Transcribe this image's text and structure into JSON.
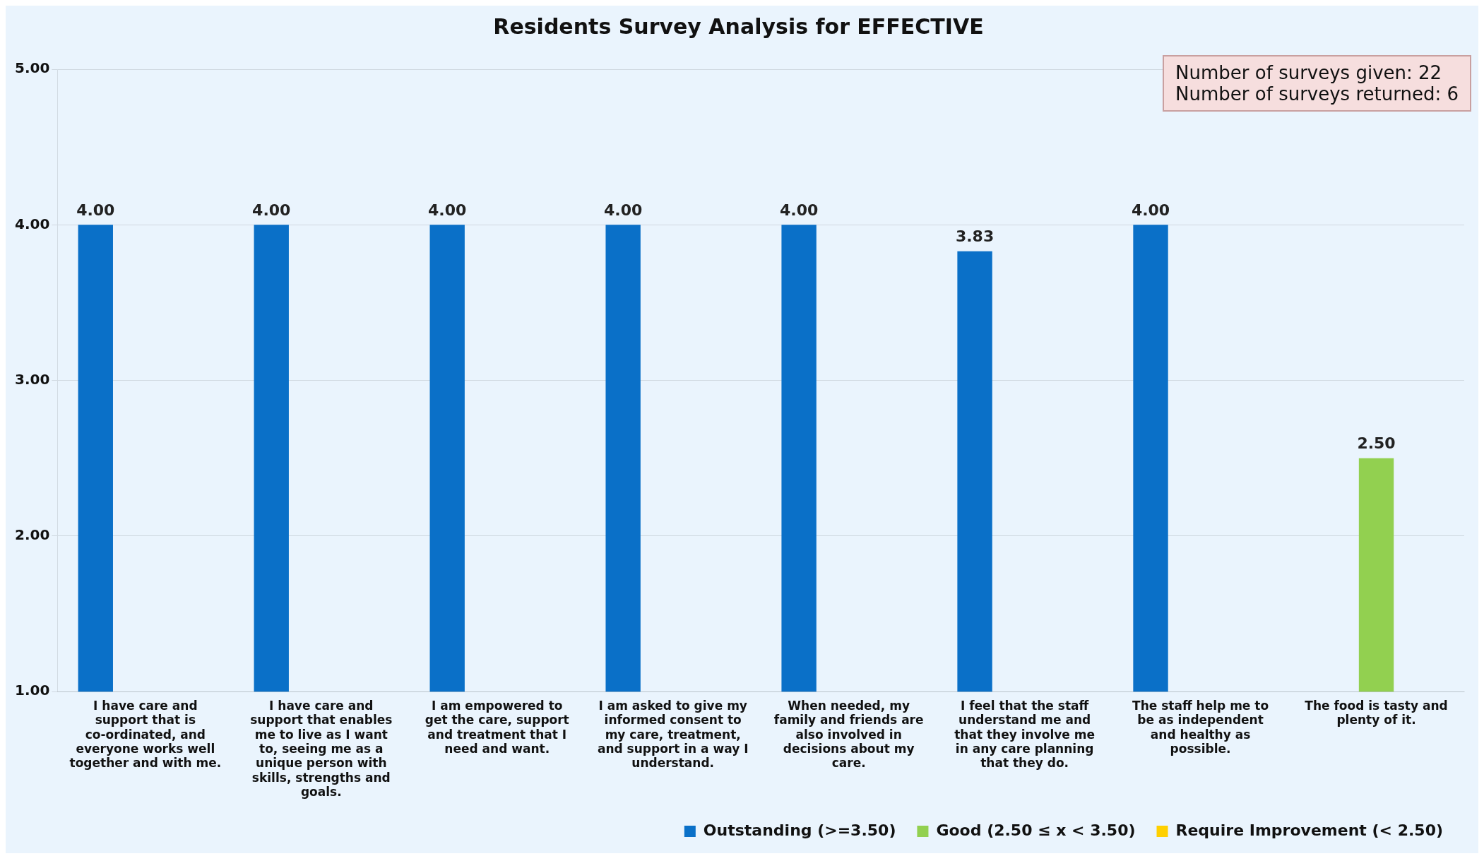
{
  "chart_data": {
    "type": "bar",
    "title": "Residents Survey Analysis for EFFECTIVE",
    "categories": [
      "I have care and support that is co-ordinated, and everyone works well together and with me.",
      "I have care and support that enables me to live as I want to, seeing me as a unique person with skills, strengths and goals.",
      "I am empowered to get the care, support and treatment that I need and want.",
      "I am asked to give my informed consent to my care, treatment, and support in a way I understand.",
      "When needed, my family and friends are also involved in decisions about my care.",
      "I feel that the staff understand me and that they involve me in any care planning that they do.",
      "The staff help me to be as independent and healthy as possible.",
      "The food is tasty and plenty of it."
    ],
    "series": [
      {
        "name": "Outstanding (>=3.50)",
        "color": "#0a70c8",
        "values": [
          4,
          4,
          4,
          4,
          4,
          3.83,
          4,
          null
        ],
        "value_labels": [
          "4.00",
          "4.00",
          "4.00",
          "4.00",
          "4.00",
          "3.83",
          "4.00",
          null
        ]
      },
      {
        "name": "Good (2.50 ≤ x < 3.50)",
        "color": "#92d050",
        "values": [
          null,
          null,
          null,
          null,
          null,
          null,
          null,
          2.5
        ],
        "value_labels": [
          null,
          null,
          null,
          null,
          null,
          null,
          null,
          "2.50"
        ]
      },
      {
        "name": "Require Improvement (< 2.50)",
        "color": "#ffd000",
        "values": [
          null,
          null,
          null,
          null,
          null,
          null,
          null,
          null
        ],
        "value_labels": [
          null,
          null,
          null,
          null,
          null,
          null,
          null,
          null
        ]
      }
    ],
    "ylim": [
      1,
      5
    ],
    "yticks": [
      {
        "value": 1,
        "label": "1.00"
      },
      {
        "value": 2,
        "label": "2.00"
      },
      {
        "value": 3,
        "label": "3.00"
      },
      {
        "value": 4,
        "label": "4.00"
      },
      {
        "value": 5,
        "label": "5.00"
      }
    ],
    "grid": "y",
    "legend": "bottom right",
    "annotations": [
      "Number of surveys given: 22",
      "Number of surveys returned: 6"
    ]
  }
}
